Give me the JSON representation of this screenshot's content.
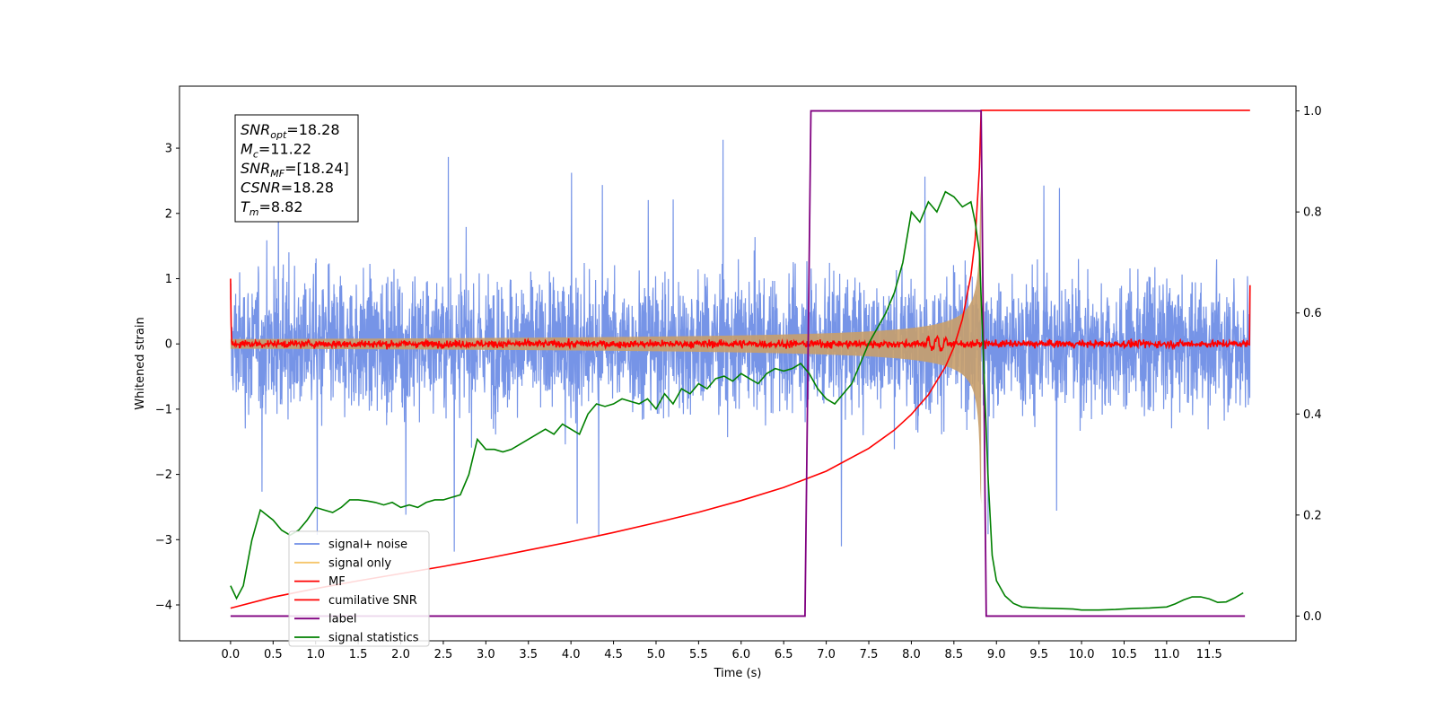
{
  "chart_data": {
    "type": "line",
    "xlabel": "Time (s)",
    "ylabel": "Whitened strain",
    "xlim": [
      -0.6,
      12.52
    ],
    "ylim": [
      -4.55,
      3.95
    ],
    "y2lim": [
      -0.049,
      1.049
    ],
    "x_ticks": [
      0.0,
      0.5,
      1.0,
      1.5,
      2.0,
      2.5,
      3.0,
      3.5,
      4.0,
      4.5,
      5.0,
      5.5,
      6.0,
      6.5,
      7.0,
      7.5,
      8.0,
      8.5,
      9.0,
      9.5,
      10.0,
      10.5,
      11.0,
      11.5
    ],
    "x_tick_labels": [
      "0.0",
      "0.5",
      "1.0",
      "1.5",
      "2.0",
      "2.5",
      "3.0",
      "3.5",
      "4.0",
      "4.5",
      "5.0",
      "5.5",
      "6.0",
      "6.5",
      "7.0",
      "7.5",
      "8.0",
      "8.5",
      "9.0",
      "9.5",
      "10.0",
      "10.5",
      "11.0",
      "11.5"
    ],
    "y_ticks": [
      -4,
      -3,
      -2,
      -1,
      0,
      1,
      2,
      3
    ],
    "y_tick_labels": [
      "−4",
      "−3",
      "−2",
      "−1",
      "0",
      "1",
      "2",
      "3"
    ],
    "y2_ticks": [
      0.0,
      0.2,
      0.4,
      0.6,
      0.8,
      1.0
    ],
    "y2_tick_labels": [
      "0.0",
      "0.2",
      "0.4",
      "0.6",
      "0.8",
      "1.0"
    ],
    "grid": false,
    "legend_position": "lower-left",
    "annotation": {
      "lines": [
        {
          "base": "SNR",
          "sub": "opt",
          "rest": "=18.28"
        },
        {
          "base": "M",
          "sub": "c",
          "rest": "=11.22"
        },
        {
          "base": "SNR",
          "sub": "MF",
          "rest": "=[18.24]"
        },
        {
          "base": "CSNR",
          "sub": "",
          "rest": "=18.28"
        },
        {
          "base": "T",
          "sub": "m",
          "rest": "=8.82"
        }
      ]
    },
    "series": [
      {
        "name": "signal+ noise",
        "color": "#6f8ee6",
        "axis": "left",
        "style": "noise",
        "t_start": 0.0,
        "t_end": 11.98,
        "typical_amplitude": 1.3,
        "peak_max": 3.25,
        "peak_min": -4.15
      },
      {
        "name": "signal only",
        "color": "#f5c66b",
        "axis": "left",
        "style": "chirp",
        "t_start": 0.0,
        "t_end": 8.82,
        "envelope_start": 0.03,
        "envelope_peak": 3.3
      },
      {
        "name": "MF",
        "color": "#ff0000",
        "axis": "left",
        "style": "mf",
        "t_start": 0.0,
        "t_end": 11.98,
        "baseline": 0.0,
        "noise_amplitude": 0.07,
        "start_value": 1.0,
        "end_value": 0.9
      },
      {
        "name": "cumilative SNR",
        "color": "#ff0000",
        "axis": "left",
        "x": [
          0.0,
          0.5,
          1.0,
          1.5,
          2.0,
          2.5,
          3.0,
          3.5,
          4.0,
          4.5,
          5.0,
          5.5,
          6.0,
          6.5,
          7.0,
          7.5,
          7.8,
          8.0,
          8.2,
          8.4,
          8.5,
          8.6,
          8.7,
          8.75,
          8.8,
          8.82,
          11.98
        ],
        "y": [
          -4.05,
          -3.88,
          -3.75,
          -3.63,
          -3.52,
          -3.41,
          -3.29,
          -3.16,
          -3.03,
          -2.89,
          -2.74,
          -2.58,
          -2.4,
          -2.2,
          -1.95,
          -1.6,
          -1.32,
          -1.08,
          -0.78,
          -0.35,
          -0.05,
          0.38,
          1.05,
          1.6,
          2.7,
          3.58,
          3.58
        ]
      },
      {
        "name": "label",
        "color": "#800080",
        "axis": "right",
        "x": [
          0.0,
          6.75,
          6.82,
          8.82,
          8.88,
          11.92
        ],
        "y": [
          0.0,
          0.0,
          1.0,
          1.0,
          0.0,
          0.0
        ]
      },
      {
        "name": "signal statistics",
        "color": "#008000",
        "axis": "right",
        "x": [
          0.0,
          0.07,
          0.15,
          0.25,
          0.35,
          0.5,
          0.6,
          0.7,
          0.8,
          0.9,
          1.0,
          1.1,
          1.2,
          1.3,
          1.4,
          1.5,
          1.6,
          1.7,
          1.8,
          1.9,
          2.0,
          2.1,
          2.2,
          2.3,
          2.4,
          2.5,
          2.6,
          2.7,
          2.8,
          2.9,
          3.0,
          3.1,
          3.2,
          3.3,
          3.4,
          3.5,
          3.6,
          3.7,
          3.8,
          3.9,
          4.0,
          4.1,
          4.2,
          4.3,
          4.4,
          4.5,
          4.6,
          4.7,
          4.8,
          4.9,
          5.0,
          5.1,
          5.2,
          5.3,
          5.4,
          5.5,
          5.6,
          5.7,
          5.8,
          5.9,
          6.0,
          6.1,
          6.2,
          6.3,
          6.4,
          6.5,
          6.6,
          6.7,
          6.8,
          6.9,
          7.0,
          7.1,
          7.2,
          7.3,
          7.4,
          7.5,
          7.6,
          7.7,
          7.8,
          7.9,
          8.0,
          8.1,
          8.2,
          8.3,
          8.4,
          8.5,
          8.6,
          8.7,
          8.75,
          8.8,
          8.85,
          8.9,
          8.95,
          9.0,
          9.1,
          9.2,
          9.3,
          9.5,
          9.7,
          9.9,
          10.0,
          10.2,
          10.4,
          10.6,
          10.8,
          10.9,
          11.0,
          11.1,
          11.2,
          11.3,
          11.4,
          11.5,
          11.6,
          11.7,
          11.8,
          11.9
        ],
        "y": [
          0.06,
          0.035,
          0.06,
          0.15,
          0.21,
          0.19,
          0.17,
          0.16,
          0.17,
          0.19,
          0.215,
          0.21,
          0.205,
          0.215,
          0.23,
          0.23,
          0.228,
          0.225,
          0.22,
          0.225,
          0.215,
          0.22,
          0.215,
          0.225,
          0.23,
          0.23,
          0.235,
          0.24,
          0.28,
          0.35,
          0.33,
          0.33,
          0.325,
          0.33,
          0.34,
          0.35,
          0.36,
          0.37,
          0.36,
          0.38,
          0.37,
          0.36,
          0.4,
          0.42,
          0.415,
          0.42,
          0.43,
          0.425,
          0.42,
          0.43,
          0.41,
          0.44,
          0.42,
          0.45,
          0.44,
          0.46,
          0.45,
          0.47,
          0.475,
          0.465,
          0.48,
          0.47,
          0.46,
          0.48,
          0.49,
          0.485,
          0.49,
          0.5,
          0.48,
          0.45,
          0.43,
          0.42,
          0.44,
          0.46,
          0.5,
          0.54,
          0.57,
          0.6,
          0.64,
          0.7,
          0.8,
          0.78,
          0.82,
          0.8,
          0.84,
          0.83,
          0.81,
          0.82,
          0.78,
          0.72,
          0.5,
          0.28,
          0.12,
          0.07,
          0.04,
          0.025,
          0.018,
          0.016,
          0.015,
          0.014,
          0.012,
          0.012,
          0.013,
          0.015,
          0.016,
          0.017,
          0.018,
          0.024,
          0.032,
          0.038,
          0.038,
          0.034,
          0.027,
          0.028,
          0.036,
          0.046
        ]
      }
    ]
  }
}
